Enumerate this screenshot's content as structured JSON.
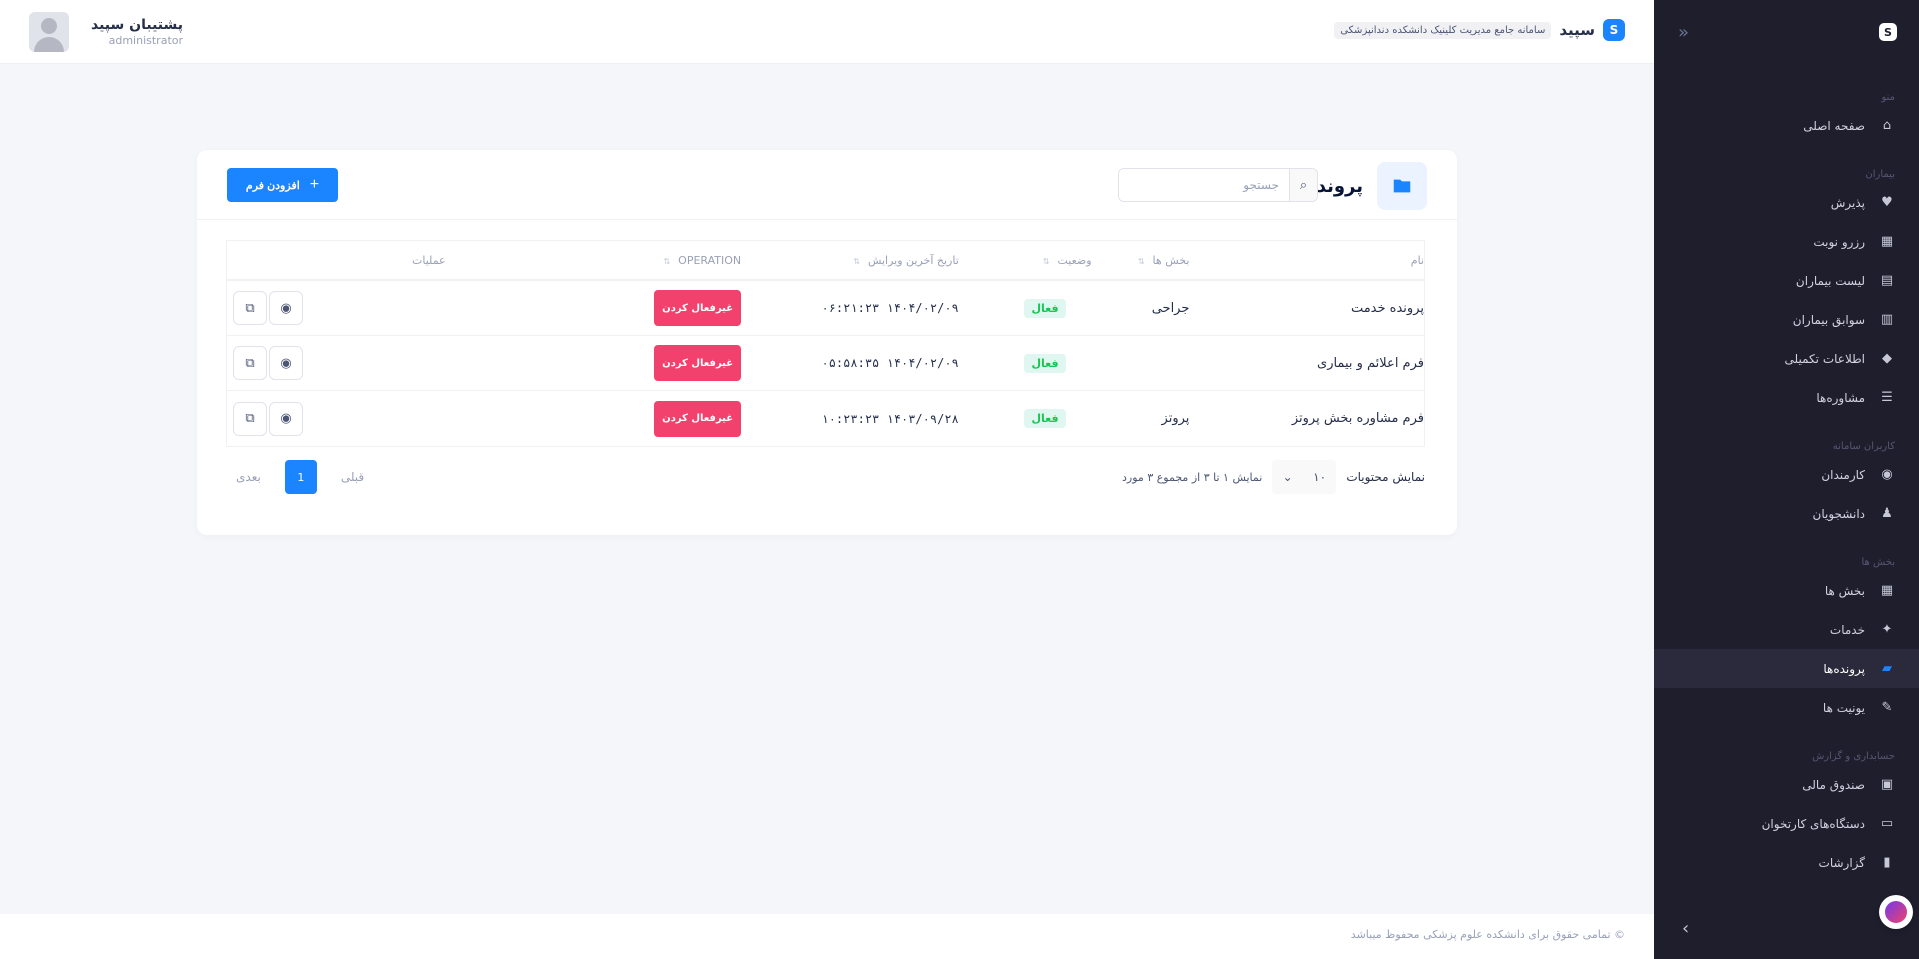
{
  "header": {
    "brand_name": "سپید",
    "brand_subtitle": "سامانه جامع مدیریت کلینیک دانشکده دندانپزشکی",
    "user_name": "پشتیبان سپید",
    "user_role": "administrator"
  },
  "sidebar": {
    "sections": [
      {
        "title": "منو",
        "items": [
          {
            "label": "صفحه اصلی",
            "icon": "home-icon"
          }
        ]
      },
      {
        "title": "بیماران",
        "items": [
          {
            "label": "پذیرش",
            "icon": "heartbeat-icon"
          },
          {
            "label": "رزرو نوبت",
            "icon": "calendar-icon"
          },
          {
            "label": "لیست بیماران",
            "icon": "contact-card-icon"
          },
          {
            "label": "سوابق بیماران",
            "icon": "document-icon"
          },
          {
            "label": "اطلاعات تکمیلی",
            "icon": "cube-icon"
          },
          {
            "label": "مشاوره‌ها",
            "icon": "menu-lines-icon"
          }
        ]
      },
      {
        "title": "کاربران سامانه",
        "items": [
          {
            "label": "کارمندان",
            "icon": "user-circle-icon"
          },
          {
            "label": "دانشجویان",
            "icon": "students-icon"
          }
        ]
      },
      {
        "title": "بخش ها",
        "items": [
          {
            "label": "بخش ها",
            "icon": "grid-icon"
          },
          {
            "label": "خدمات",
            "icon": "tools-icon"
          },
          {
            "label": "پرونده‌ها",
            "icon": "folder-icon",
            "active": true
          },
          {
            "label": "یونیت ها",
            "icon": "syringe-icon"
          }
        ]
      },
      {
        "title": "حسابداری و گزارش",
        "items": [
          {
            "label": "صندوق مالی",
            "icon": "cashbox-icon"
          },
          {
            "label": "دستگاه‌های کارتخوان",
            "icon": "card-reader-icon"
          },
          {
            "label": "گزارشات",
            "icon": "chart-icon"
          }
        ]
      }
    ]
  },
  "page": {
    "title": "پرونده‌ها",
    "search_placeholder": "جستجو",
    "add_button": "افزودن فرم"
  },
  "table": {
    "headers": {
      "name": "نام",
      "dept": "بخش ها",
      "status": "وضعیت",
      "date": "تاریخ آخرین ویرایش",
      "operation": "OPERATION",
      "actions": "عملیات"
    },
    "rows": [
      {
        "name": "پرونده خدمت",
        "dept": "جراحی",
        "status": "فعال",
        "date": "۱۴۰۴/۰۲/۰۹ ۰۶:۲۱:۲۳",
        "operation": "غیرفعال کردن"
      },
      {
        "name": "فرم اعلائم و بیماری",
        "dept": "",
        "status": "فعال",
        "date": "۱۴۰۴/۰۲/۰۹ ۰۵:۵۸:۳۵",
        "operation": "غیرفعال کردن"
      },
      {
        "name": "فرم مشاوره بخش پروتز",
        "dept": "پروتز",
        "status": "فعال",
        "date": "۱۴۰۳/۰۹/۲۸ ۱۰:۲۳:۲۳",
        "operation": "غیرفعال کردن"
      }
    ]
  },
  "pagination": {
    "show_label": "نمایش محتویات",
    "per_page": "۱۰",
    "info": "نمایش ۱ تا ۳ از مجموع ۳ مورد",
    "prev": "قبلی",
    "current": "1",
    "next": "بعدی"
  },
  "footer": {
    "text": "© تمامی حقوق برای دانشکده علوم پزشکی محفوظ میباشد"
  },
  "colors": {
    "primary": "#1b84ff",
    "danger": "#f1416c",
    "success": "#17c653",
    "sidebar_bg": "#1e1e2d"
  }
}
